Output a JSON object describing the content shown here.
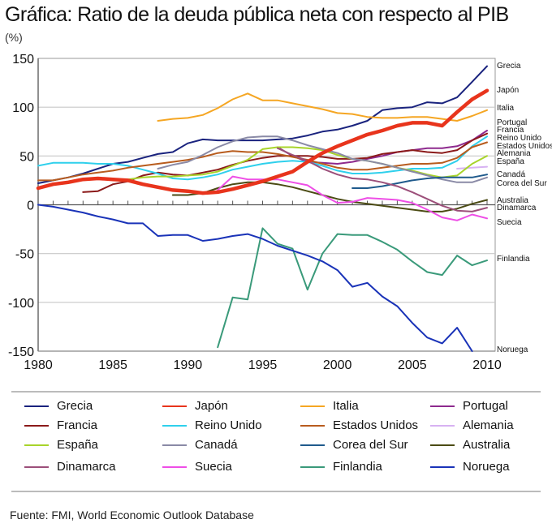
{
  "title": "Gráfica: Ratio de la deuda pública neta con respecto al PIB",
  "unit_label": "(%)",
  "source": "Fuente: FMI, World Economic Outlook Database",
  "chart_data": {
    "type": "line",
    "title": "Gráfica: Ratio de la deuda pública neta con respecto al PIB",
    "xlabel": "",
    "ylabel": "(%)",
    "xlim": [
      1980,
      2010
    ],
    "ylim": [
      -150,
      150
    ],
    "x_ticks": [
      1980,
      1985,
      1990,
      1995,
      2000,
      2005,
      2010
    ],
    "y_ticks": [
      150,
      100,
      50,
      0,
      -50,
      -100,
      -150
    ],
    "x_tick_labels": [
      "1980",
      "1985",
      "1990",
      "1995",
      "2000",
      "2005",
      "2010"
    ],
    "y_tick_labels": [
      "150",
      "100",
      "50",
      "0",
      "-50",
      "-100",
      "-150"
    ],
    "grid": "horizontal",
    "legend_position": "bottom",
    "highlighted_series": "Japón",
    "series": [
      {
        "name": "Grecia",
        "color": "#1a237e",
        "start": 1980,
        "values": [
          22,
          25,
          28,
          32,
          37,
          42,
          44,
          48,
          52,
          54,
          63,
          67,
          66,
          66,
          66,
          66,
          67,
          68,
          71,
          75,
          77,
          81,
          86,
          97,
          99,
          100,
          105,
          104,
          110,
          126,
          142
        ]
      },
      {
        "name": "Japón",
        "color": "#e8341c",
        "start": 1980,
        "values": [
          17,
          21,
          23,
          26,
          27,
          26,
          25,
          21,
          18,
          15,
          14,
          12,
          13,
          16,
          20,
          24,
          29,
          34,
          44,
          53,
          60,
          66,
          72,
          76,
          81,
          84,
          84,
          81,
          95,
          108,
          117
        ]
      },
      {
        "name": "Italia",
        "color": "#f5a623",
        "start": 1988,
        "values": [
          86,
          88,
          89,
          92,
          99,
          108,
          114,
          107,
          107,
          104,
          101,
          98,
          94,
          93,
          90,
          89,
          89,
          90,
          90,
          88,
          86,
          91,
          97,
          99
        ]
      },
      {
        "name": "Portugal",
        "color": "#8e2a8e",
        "start": 1996,
        "values": [
          59,
          50,
          44,
          43,
          42,
          44,
          47,
          50,
          54,
          56,
          58,
          58,
          60,
          66,
          76,
          80
        ]
      },
      {
        "name": "Francia",
        "color": "#8b1a1a",
        "start": 1980,
        "values": [
          null,
          null,
          null,
          13,
          14,
          21,
          24,
          30,
          33,
          31,
          30,
          33,
          36,
          41,
          45,
          48,
          50,
          50,
          50,
          49,
          47,
          47,
          48,
          52,
          54,
          56,
          54,
          53,
          56,
          66,
          73
        ]
      },
      {
        "name": "Reino Unido",
        "color": "#2fd0ec",
        "start": 1980,
        "values": [
          40,
          43,
          43,
          43,
          42,
          42,
          40,
          36,
          32,
          27,
          26,
          28,
          31,
          36,
          39,
          42,
          44,
          45,
          44,
          40,
          35,
          32,
          32,
          33,
          35,
          37,
          37,
          38,
          45,
          60,
          70
        ]
      },
      {
        "name": "Estados Unidos",
        "color": "#b85c1e",
        "start": 1980,
        "values": [
          25,
          25,
          28,
          31,
          33,
          35,
          38,
          40,
          42,
          44,
          46,
          49,
          53,
          55,
          54,
          54,
          52,
          49,
          46,
          42,
          38,
          36,
          36,
          38,
          40,
          42,
          42,
          43,
          48,
          59,
          64
        ]
      },
      {
        "name": "Alemania",
        "color": "#d7b2f2",
        "start": 1993,
        "values": [
          null,
          null,
          null,
          null,
          null,
          null,
          null,
          null,
          null,
          null,
          null,
          null,
          null,
          null,
          null,
          37,
          38,
          39,
          41,
          42,
          42,
          43,
          44,
          47,
          48,
          48,
          46,
          45,
          46,
          58,
          55,
          53
        ]
      },
      {
        "name": "España",
        "color": "#a8d42a",
        "start": 1980,
        "values": [
          null,
          null,
          null,
          null,
          null,
          null,
          26,
          28,
          29,
          29,
          30,
          31,
          34,
          40,
          46,
          57,
          59,
          59,
          58,
          56,
          51,
          47,
          45,
          42,
          38,
          35,
          31,
          28,
          30,
          42,
          50
        ]
      },
      {
        "name": "Canadá",
        "color": "#8a8aa6",
        "start": 1988,
        "values": [
          37,
          41,
          44,
          51,
          59,
          65,
          69,
          70,
          70,
          66,
          61,
          57,
          53,
          47,
          45,
          42,
          38,
          34,
          30,
          26,
          23,
          23,
          28,
          31
        ]
      },
      {
        "name": "Corea del Sur",
        "color": "#1f5a8c",
        "start": 2001,
        "values": [
          17,
          17,
          19,
          22,
          25,
          27,
          28,
          28,
          28,
          31,
          29
        ]
      },
      {
        "name": "Australia",
        "color": "#4b4b14",
        "start": 1989,
        "values": [
          10,
          10,
          12,
          17,
          21,
          23,
          23,
          21,
          18,
          14,
          10,
          6,
          3,
          1,
          -1,
          -3,
          -5,
          -7,
          -7,
          -4,
          1,
          5
        ]
      },
      {
        "name": "Dinamarca",
        "color": "#9c4f7a",
        "start": 1996,
        "values": [
          58,
          51,
          45,
          37,
          31,
          27,
          26,
          23,
          19,
          13,
          6,
          -1,
          -6,
          -7,
          -3,
          0
        ]
      },
      {
        "name": "Suecia",
        "color": "#ee4ee6",
        "start": 1992,
        "values": [
          15,
          29,
          26,
          26,
          26,
          23,
          20,
          10,
          2,
          3,
          7,
          6,
          5,
          2,
          -5,
          -13,
          -16,
          -10,
          -14,
          -13
        ]
      },
      {
        "name": "Finlandia",
        "color": "#3a9a7a",
        "start": 1992,
        "values": [
          -146,
          -95,
          -97,
          -24,
          -40,
          -45,
          -87,
          -50,
          -30,
          -31,
          -31,
          -38,
          -46,
          -58,
          -69,
          -72,
          -52,
          -62,
          -57
        ]
      },
      {
        "name": "Noruega",
        "color": "#1a33b8",
        "start": 1980,
        "values": [
          0,
          -2,
          -5,
          -8,
          -12,
          -15,
          -19,
          -19,
          -32,
          -31,
          -31,
          -37,
          -35,
          -32,
          -30,
          -35,
          -42,
          -47,
          -52,
          -58,
          -67,
          -84,
          -80,
          -94,
          -104,
          -121,
          -136,
          -142,
          -126,
          -150
        ]
      }
    ],
    "end_labels": [
      "Grecia",
      "Japón",
      "Italia",
      "Portugal",
      "Francia",
      "Reino Unido",
      "Estados Unidos",
      "Alemania",
      "España",
      "Canadá",
      "Corea del Sur",
      "Australia",
      "Dinamarca",
      "Suecia",
      "Finlandia",
      "Noruega"
    ]
  },
  "legend": {
    "rows": [
      [
        {
          "label": "Grecia",
          "color": "#1a237e"
        },
        {
          "label": "Japón",
          "color": "#e8341c"
        },
        {
          "label": "Italia",
          "color": "#f5a623"
        },
        {
          "label": "Portugal",
          "color": "#8e2a8e"
        }
      ],
      [
        {
          "label": "Francia",
          "color": "#8b1a1a"
        },
        {
          "label": "Reino Unido",
          "color": "#2fd0ec"
        },
        {
          "label": "Estados Unidos",
          "color": "#b85c1e"
        },
        {
          "label": "Alemania",
          "color": "#d7b2f2"
        }
      ],
      [
        {
          "label": "España",
          "color": "#a8d42a"
        },
        {
          "label": "Canadá",
          "color": "#8a8aa6"
        },
        {
          "label": "Corea del Sur",
          "color": "#1f5a8c"
        },
        {
          "label": "Australia",
          "color": "#4b4b14"
        }
      ],
      [
        {
          "label": "Dinamarca",
          "color": "#9c4f7a"
        },
        {
          "label": "Suecia",
          "color": "#ee4ee6"
        },
        {
          "label": "Finlandia",
          "color": "#3a9a7a"
        },
        {
          "label": "Noruega",
          "color": "#1a33b8"
        }
      ]
    ]
  }
}
